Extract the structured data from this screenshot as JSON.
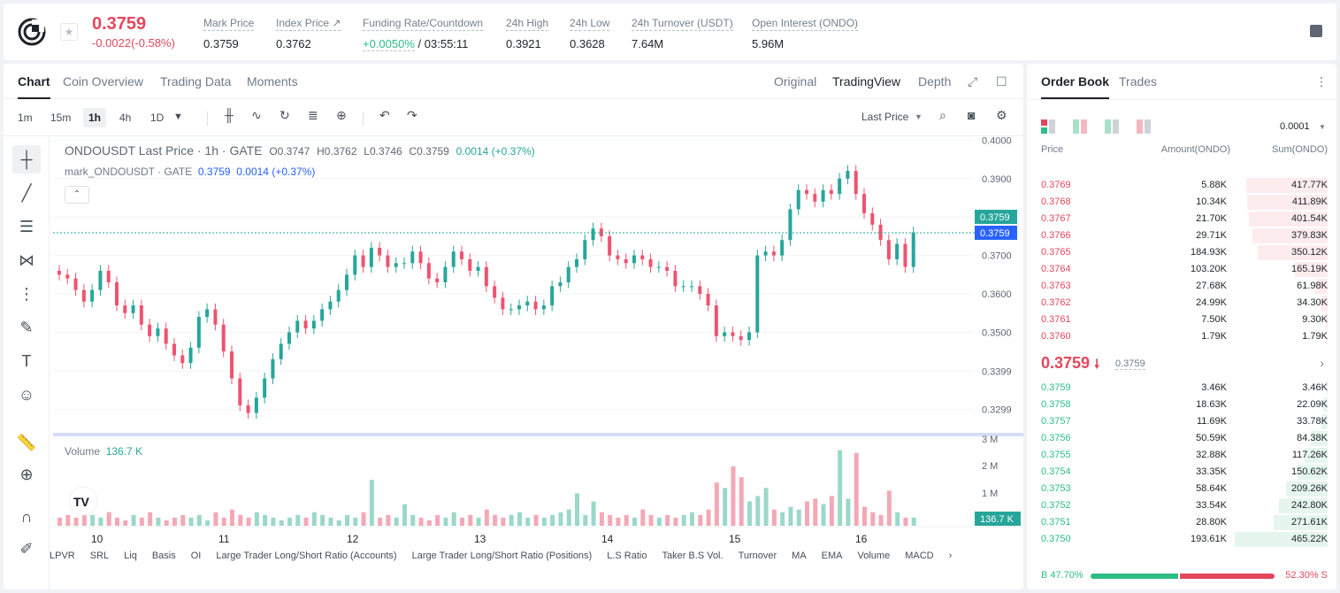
{
  "header": {
    "last_price": "0.3759",
    "change": "-0.0022(-0.58%)",
    "stats": [
      {
        "label": "Mark Price",
        "value": "0.3759"
      },
      {
        "label": "Index Price ↗",
        "value": "0.3762"
      },
      {
        "label": "Funding Rate/Countdown",
        "value_green": "+0.0050%",
        "value": "/ 03:55:11"
      },
      {
        "label": "24h High",
        "value": "0.3921"
      },
      {
        "label": "24h Low",
        "value": "0.3628"
      },
      {
        "label": "24h Turnover (USDT)",
        "value": "7.64M"
      },
      {
        "label": "Open Interest (ONDO)",
        "value": "5.96M"
      }
    ]
  },
  "tabs": [
    "Chart",
    "Coin Overview",
    "Trading Data",
    "Moments"
  ],
  "views": [
    "Original",
    "TradingView",
    "Depth"
  ],
  "intervals": [
    "1m",
    "15m",
    "1h",
    "4h",
    "1D"
  ],
  "price_type": "Last Price",
  "legend": {
    "title": "ONDOUSDT Last Price · 1h · GATE",
    "o": "O0.3747",
    "h": "H0.3762",
    "l": "L0.3746",
    "c": "C0.3759",
    "chg": "0.0014 (+0.37%)",
    "mark": "mark_ONDOUSDT · GATE",
    "mark_val": "0.3759",
    "mark_chg": "0.0014 (+0.37%)"
  },
  "volume": {
    "label": "Volume",
    "value": "136.7 K"
  },
  "indicators": [
    "LPVR",
    "SRL",
    "Liq",
    "Basis",
    "OI",
    "Large Trader Long/Short Ratio (Accounts)",
    "Large Trader Long/Short Ratio (Positions)",
    "L.S Ratio",
    "Taker B.S Vol.",
    "Turnover",
    "MA",
    "EMA",
    "Volume",
    "MACD"
  ],
  "chart_data": {
    "type": "candlestick",
    "x_labels": [
      "10",
      "11",
      "12",
      "13",
      "14",
      "15",
      "16"
    ],
    "y_ticks": [
      "0.4000",
      "0.3900",
      "0.3800",
      "0.3700",
      "0.3600",
      "0.3500",
      "0.3399",
      "0.3299"
    ],
    "vol_ticks": [
      "3 M",
      "2 M",
      "1 M"
    ],
    "price_tags": [
      "0.3759",
      "0.3759"
    ],
    "vol_tag": "136.7 K",
    "close": [
      0.365,
      0.364,
      0.361,
      0.358,
      0.361,
      0.366,
      0.363,
      0.357,
      0.355,
      0.357,
      0.352,
      0.349,
      0.351,
      0.347,
      0.344,
      0.342,
      0.346,
      0.354,
      0.356,
      0.352,
      0.345,
      0.338,
      0.331,
      0.329,
      0.333,
      0.338,
      0.343,
      0.347,
      0.35,
      0.353,
      0.351,
      0.353,
      0.356,
      0.358,
      0.361,
      0.365,
      0.37,
      0.367,
      0.372,
      0.37,
      0.367,
      0.368,
      0.368,
      0.371,
      0.368,
      0.364,
      0.363,
      0.367,
      0.371,
      0.369,
      0.366,
      0.367,
      0.362,
      0.359,
      0.356,
      0.356,
      0.357,
      0.358,
      0.356,
      0.357,
      0.362,
      0.363,
      0.367,
      0.369,
      0.374,
      0.377,
      0.375,
      0.37,
      0.369,
      0.368,
      0.37,
      0.369,
      0.367,
      0.367,
      0.366,
      0.362,
      0.362,
      0.362,
      0.36,
      0.357,
      0.349,
      0.35,
      0.349,
      0.348,
      0.35,
      0.37,
      0.371,
      0.37,
      0.374,
      0.382,
      0.387,
      0.386,
      0.384,
      0.387,
      0.386,
      0.39,
      0.392,
      0.386,
      0.381,
      0.378,
      0.374,
      0.369,
      0.373,
      0.367,
      0.376
    ],
    "volume_millions": [
      0.3,
      0.4,
      0.3,
      0.5,
      0.4,
      0.3,
      0.5,
      0.3,
      0.2,
      0.4,
      0.3,
      0.5,
      0.3,
      0.2,
      0.3,
      0.4,
      0.3,
      0.4,
      0.2,
      0.5,
      0.3,
      0.6,
      0.4,
      0.3,
      0.5,
      0.4,
      0.3,
      0.2,
      0.3,
      0.4,
      0.3,
      0.5,
      0.4,
      0.3,
      0.2,
      0.4,
      0.3,
      0.5,
      1.7,
      0.3,
      0.4,
      0.3,
      0.8,
      0.4,
      0.3,
      0.2,
      0.4,
      0.3,
      0.5,
      0.3,
      0.4,
      0.3,
      0.6,
      0.4,
      0.3,
      0.4,
      0.5,
      0.3,
      0.4,
      0.3,
      0.4,
      0.5,
      0.6,
      1.2,
      0.4,
      0.9,
      0.5,
      0.4,
      0.3,
      0.4,
      0.3,
      0.6,
      0.4,
      0.3,
      0.4,
      0.3,
      0.4,
      0.5,
      0.4,
      0.6,
      1.6,
      1.4,
      2.2,
      1.8,
      0.9,
      1.1,
      1.4,
      0.6,
      0.5,
      0.7,
      0.6,
      0.9,
      1.0,
      0.8,
      1.1,
      2.8,
      1.0,
      2.7,
      0.7,
      0.5,
      0.4,
      1.3,
      0.5,
      0.3,
      0.3
    ]
  },
  "orderbook": {
    "tabs": [
      "Order Book",
      "Trades"
    ],
    "precision": "0.0001",
    "headers": [
      "Price",
      "Amount(ONDO)",
      "Sum(ONDO)"
    ],
    "asks": [
      [
        "0.3769",
        "5.88K",
        "417.77K",
        0.88
      ],
      [
        "0.3768",
        "10.34K",
        "411.89K",
        0.87
      ],
      [
        "0.3767",
        "21.70K",
        "401.54K",
        0.85
      ],
      [
        "0.3766",
        "29.71K",
        "379.83K",
        0.81
      ],
      [
        "0.3765",
        "184.93K",
        "350.12K",
        0.75
      ],
      [
        "0.3764",
        "103.20K",
        "165.19K",
        0.35
      ],
      [
        "0.3763",
        "27.68K",
        "61.98K",
        0.13
      ],
      [
        "0.3762",
        "24.99K",
        "34.30K",
        0.07
      ],
      [
        "0.3761",
        "7.50K",
        "9.30K",
        0.02
      ],
      [
        "0.3760",
        "1.79K",
        "1.79K",
        0.01
      ]
    ],
    "mid": "0.3759",
    "mid_mark": "0.3759",
    "bids": [
      [
        "0.3759",
        "3.46K",
        "3.46K",
        0.01
      ],
      [
        "0.3758",
        "18.63K",
        "22.09K",
        0.05
      ],
      [
        "0.3757",
        "11.69K",
        "33.78K",
        0.07
      ],
      [
        "0.3756",
        "50.59K",
        "84.38K",
        0.18
      ],
      [
        "0.3755",
        "32.88K",
        "117.26K",
        0.25
      ],
      [
        "0.3754",
        "33.35K",
        "150.62K",
        0.32
      ],
      [
        "0.3753",
        "58.64K",
        "209.26K",
        0.45
      ],
      [
        "0.3752",
        "33.54K",
        "242.80K",
        0.52
      ],
      [
        "0.3751",
        "28.80K",
        "271.61K",
        0.58
      ],
      [
        "0.3750",
        "193.61K",
        "465.22K",
        1.0
      ]
    ],
    "buy_ratio": "B 47.70%",
    "sell_ratio": "52.30% S"
  }
}
